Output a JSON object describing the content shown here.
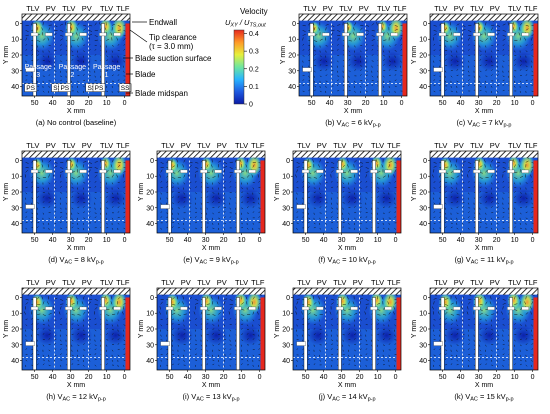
{
  "figure": {
    "colorbar": {
      "title": "Velocity",
      "quantity": "U",
      "quantity_sub": "XY",
      "ratio_sep": " / U",
      "ref_sub": "TS,out",
      "ticks": [
        0,
        0.1,
        0.2,
        0.3,
        0.4
      ],
      "tick_labels": [
        "0",
        "0.1",
        "0.2",
        "0.3",
        "0.4"
      ],
      "colors": [
        "#0a1aa6",
        "#1f5ae0",
        "#28b4ff",
        "#6ee6a0",
        "#e6f03c",
        "#ff9a28",
        "#e6281e"
      ]
    },
    "annotations": {
      "endwall": "Endwall",
      "tip_clearance": "Tip clearance",
      "tip_clearance_value": "(τ = 3.0 mm)",
      "suction_surface": "Blade suction surface",
      "blade": "Blade",
      "midspan": "Blade midspan",
      "passage_word": "Passage",
      "passage_numbers": [
        "3",
        "2",
        "1"
      ],
      "ps": "PS",
      "ss": "SS"
    }
  },
  "chart_data": [
    {
      "type": "heatmap",
      "panel": "a",
      "caption": "(a) No control (baseline)",
      "top_labels": [
        "TLV",
        "PV",
        "TLV",
        "PV",
        "TLV",
        "TLF"
      ],
      "xlabel": "X mm",
      "ylabel": "Y mm",
      "xticks": [
        50,
        40,
        30,
        20,
        10,
        0
      ],
      "yticks": [
        0,
        10,
        20,
        30,
        40
      ],
      "xlim": [
        57,
        -3
      ],
      "ylim": [
        -6,
        46
      ]
    },
    {
      "type": "heatmap",
      "panel": "b",
      "caption_prefix": "(b) V",
      "caption_sub": "AC",
      "caption_value": " = 6 kV",
      "caption_unit_sub": "p-p",
      "top_labels": [
        "TLV",
        "PV",
        "TLV",
        "PV",
        "TLV",
        "TLF"
      ],
      "xlabel": "X mm",
      "ylabel": "Y mm",
      "xticks": [
        50,
        40,
        30,
        20,
        10,
        0
      ],
      "yticks": [
        0,
        10,
        20,
        30,
        40
      ],
      "xlim": [
        57,
        -3
      ],
      "ylim": [
        -6,
        46
      ]
    },
    {
      "type": "heatmap",
      "panel": "c",
      "caption_prefix": "(c) V",
      "caption_sub": "AC",
      "caption_value": " = 7 kV",
      "caption_unit_sub": "p-p",
      "top_labels": [
        "TLV",
        "PV",
        "TLV",
        "PV",
        "TLV",
        "TLF"
      ],
      "xlabel": "X mm",
      "ylabel": "Y mm",
      "xticks": [
        50,
        40,
        30,
        20,
        10,
        0
      ],
      "yticks": [
        0,
        10,
        20,
        30,
        40
      ],
      "xlim": [
        57,
        -3
      ],
      "ylim": [
        -6,
        46
      ]
    },
    {
      "type": "heatmap",
      "panel": "d",
      "caption_prefix": "(d) V",
      "caption_sub": "AC",
      "caption_value": " = 8 kV",
      "caption_unit_sub": "p-p",
      "top_labels": [
        "TLV",
        "PV",
        "TLV",
        "PV",
        "TLV",
        "TLF"
      ],
      "xlabel": "X mm",
      "ylabel": "Y mm",
      "xticks": [
        50,
        40,
        30,
        20,
        10,
        0
      ],
      "yticks": [
        0,
        10,
        20,
        30,
        40
      ],
      "xlim": [
        57,
        -3
      ],
      "ylim": [
        -6,
        46
      ]
    },
    {
      "type": "heatmap",
      "panel": "e",
      "caption_prefix": "(e) V",
      "caption_sub": "AC",
      "caption_value": " = 9 kV",
      "caption_unit_sub": "p-p",
      "top_labels": [
        "TLV",
        "PV",
        "TLV",
        "PV",
        "TLV",
        "TLF"
      ],
      "xlabel": "X mm",
      "ylabel": "Y mm",
      "xticks": [
        50,
        40,
        30,
        20,
        10,
        0
      ],
      "yticks": [
        0,
        10,
        20,
        30,
        40
      ],
      "xlim": [
        57,
        -3
      ],
      "ylim": [
        -6,
        46
      ]
    },
    {
      "type": "heatmap",
      "panel": "f",
      "caption_prefix": "(f) V",
      "caption_sub": "AC",
      "caption_value": " = 10 kV",
      "caption_unit_sub": "p-p",
      "top_labels": [
        "TLV",
        "PV",
        "TLV",
        "PV",
        "TLV",
        "TLF"
      ],
      "xlabel": "X mm",
      "ylabel": "Y mm",
      "xticks": [
        50,
        40,
        30,
        20,
        10,
        0
      ],
      "yticks": [
        0,
        10,
        20,
        30,
        40
      ],
      "xlim": [
        57,
        -3
      ],
      "ylim": [
        -6,
        46
      ]
    },
    {
      "type": "heatmap",
      "panel": "g",
      "caption_prefix": "(g) V",
      "caption_sub": "AC",
      "caption_value": " = 11 kV",
      "caption_unit_sub": "p-p",
      "top_labels": [
        "TLV",
        "PV",
        "TLV",
        "PV",
        "TLV",
        "TLF"
      ],
      "xlabel": "X mm",
      "ylabel": "Y mm",
      "xticks": [
        50,
        40,
        30,
        20,
        10,
        0
      ],
      "yticks": [
        0,
        10,
        20,
        30,
        40
      ],
      "xlim": [
        57,
        -3
      ],
      "ylim": [
        -6,
        46
      ]
    },
    {
      "type": "heatmap",
      "panel": "h",
      "caption_prefix": "(h) V",
      "caption_sub": "AC",
      "caption_value": " = 12 kV",
      "caption_unit_sub": "p-p",
      "top_labels": [
        "TLV",
        "PV",
        "TLV",
        "PV",
        "TLV",
        "TLF"
      ],
      "xlabel": "X mm",
      "ylabel": "Y mm",
      "xticks": [
        50,
        40,
        30,
        20,
        10,
        0
      ],
      "yticks": [
        0,
        10,
        20,
        30,
        40
      ],
      "xlim": [
        57,
        -3
      ],
      "ylim": [
        -6,
        46
      ]
    },
    {
      "type": "heatmap",
      "panel": "i",
      "caption_prefix": "(i) V",
      "caption_sub": "AC",
      "caption_value": " = 13 kV",
      "caption_unit_sub": "p-p",
      "top_labels": [
        "TLV",
        "PV",
        "TLV",
        "PV",
        "TLV",
        "TLF"
      ],
      "xlabel": "X mm",
      "ylabel": "Y mm",
      "xticks": [
        50,
        40,
        30,
        20,
        10,
        0
      ],
      "yticks": [
        0,
        10,
        20,
        30,
        40
      ],
      "xlim": [
        57,
        -3
      ],
      "ylim": [
        -6,
        46
      ]
    },
    {
      "type": "heatmap",
      "panel": "j",
      "caption_prefix": "(j) V",
      "caption_sub": "AC",
      "caption_value": " = 14 kV",
      "caption_unit_sub": "p-p",
      "top_labels": [
        "TLV",
        "PV",
        "TLV",
        "PV",
        "TLV",
        "TLF"
      ],
      "xlabel": "X mm",
      "ylabel": "Y mm",
      "xticks": [
        50,
        40,
        30,
        20,
        10,
        0
      ],
      "yticks": [
        0,
        10,
        20,
        30,
        40
      ],
      "xlim": [
        57,
        -3
      ],
      "ylim": [
        -6,
        46
      ]
    },
    {
      "type": "heatmap",
      "panel": "k",
      "caption_prefix": "(k) V",
      "caption_sub": "AC",
      "caption_value": " = 15 kV",
      "caption_unit_sub": "p-p",
      "top_labels": [
        "TLV",
        "PV",
        "TLV",
        "PV",
        "TLV",
        "TLF"
      ],
      "xlabel": "X mm",
      "ylabel": "Y mm",
      "xticks": [
        50,
        40,
        30,
        20,
        10,
        0
      ],
      "yticks": [
        0,
        10,
        20,
        30,
        40
      ],
      "xlim": [
        57,
        -3
      ],
      "ylim": [
        -6,
        46
      ]
    }
  ]
}
